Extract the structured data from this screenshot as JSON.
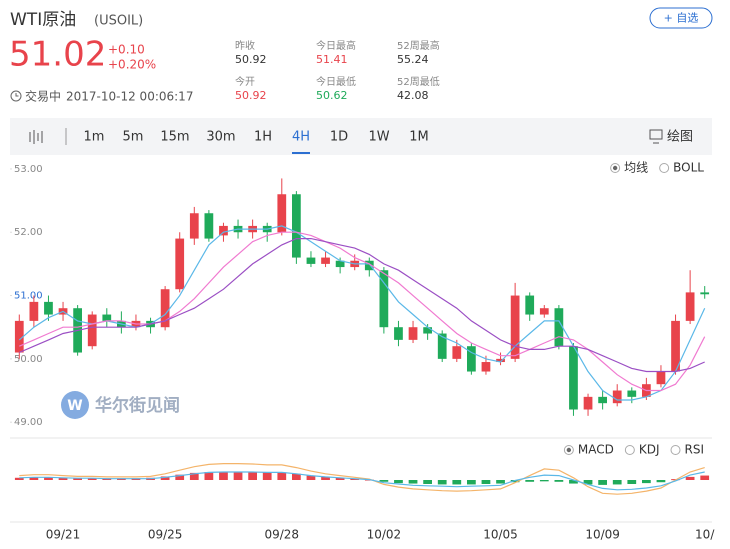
{
  "header": {
    "name": "WTI原油",
    "symbol": "(USOIL)",
    "price": "51.02",
    "change": "+0.10",
    "change_pct": "+0.20%",
    "status": "交易中",
    "time": "2017-10-12 00:06:17",
    "watch_button": "+ 自选",
    "stats": [
      {
        "label": "昨收",
        "value": "50.92",
        "color": "#333333"
      },
      {
        "label": "今日最高",
        "value": "51.41",
        "color": "#e8434b"
      },
      {
        "label": "52周最高",
        "value": "55.24",
        "color": "#333333"
      },
      {
        "label": "今开",
        "value": "50.92",
        "color": "#e8434b"
      },
      {
        "label": "今日最低",
        "value": "50.62",
        "color": "#1faa5a"
      },
      {
        "label": "52周最低",
        "value": "42.08",
        "color": "#333333"
      }
    ]
  },
  "toolbar": {
    "intervals": [
      {
        "label": "1m",
        "active": false
      },
      {
        "label": "5m",
        "active": false
      },
      {
        "label": "15m",
        "active": false
      },
      {
        "label": "30m",
        "active": false
      },
      {
        "label": "1H",
        "active": false
      },
      {
        "label": "4H",
        "active": true
      },
      {
        "label": "1D",
        "active": false
      },
      {
        "label": "1W",
        "active": false
      },
      {
        "label": "1M",
        "active": false
      }
    ],
    "draw": "绘图"
  },
  "chart_data": [
    {
      "type": "candlestick",
      "watermark": "华尔街见闻",
      "categories": [
        null,
        null,
        null,
        "09/21",
        null,
        null,
        null,
        null,
        null,
        null,
        "09/25",
        null,
        null,
        null,
        null,
        null,
        null,
        null,
        "09/28",
        null,
        null,
        null,
        null,
        null,
        null,
        "10/02",
        null,
        null,
        null,
        null,
        null,
        null,
        null,
        "10/05",
        null,
        null,
        null,
        null,
        null,
        null,
        "10/09",
        null,
        null,
        null,
        null,
        null,
        null,
        "10/"
      ],
      "open": [
        50.1,
        50.6,
        50.9,
        50.7,
        50.8,
        50.2,
        50.7,
        50.6,
        50.5,
        50.6,
        50.5,
        51.1,
        51.9,
        52.3,
        51.95,
        52.1,
        52.0,
        52.1,
        52.0,
        52.6,
        51.6,
        51.5,
        51.55,
        51.45,
        51.55,
        51.4,
        50.5,
        50.3,
        50.5,
        50.4,
        50.0,
        50.2,
        49.8,
        49.95,
        50.0,
        51.0,
        50.7,
        50.8,
        50.2,
        49.2,
        49.4,
        49.3,
        49.5,
        49.4,
        49.6,
        49.8,
        50.6,
        51.05
      ],
      "high": [
        50.7,
        51.0,
        51.0,
        50.9,
        50.85,
        50.75,
        50.8,
        50.75,
        50.7,
        50.65,
        51.15,
        52.0,
        52.4,
        52.35,
        52.15,
        52.2,
        52.2,
        52.15,
        52.85,
        52.65,
        51.7,
        51.7,
        51.6,
        51.65,
        51.6,
        51.45,
        50.6,
        50.6,
        50.55,
        50.45,
        50.3,
        50.25,
        50.05,
        50.1,
        51.2,
        51.05,
        50.85,
        50.85,
        50.25,
        49.45,
        49.5,
        49.6,
        49.55,
        49.7,
        49.9,
        50.7,
        51.4,
        51.15
      ],
      "low": [
        50.0,
        50.5,
        50.6,
        50.6,
        50.05,
        50.15,
        50.5,
        50.4,
        50.45,
        50.4,
        50.45,
        51.05,
        51.8,
        51.85,
        51.85,
        51.9,
        51.9,
        51.85,
        51.95,
        51.5,
        51.45,
        51.45,
        51.35,
        51.4,
        51.3,
        50.4,
        50.2,
        50.25,
        50.3,
        49.95,
        49.95,
        49.75,
        49.75,
        49.9,
        49.95,
        50.6,
        50.65,
        50.15,
        49.1,
        49.1,
        49.2,
        49.25,
        49.3,
        49.35,
        49.55,
        49.75,
        50.55,
        50.95
      ],
      "close": [
        50.6,
        50.9,
        50.7,
        50.8,
        50.1,
        50.7,
        50.6,
        50.5,
        50.6,
        50.5,
        51.1,
        51.9,
        52.3,
        51.9,
        52.1,
        52.0,
        52.1,
        52.0,
        52.6,
        51.6,
        51.5,
        51.6,
        51.45,
        51.55,
        51.4,
        50.5,
        50.3,
        50.5,
        50.4,
        50.0,
        50.2,
        49.8,
        49.95,
        50.0,
        51.0,
        50.7,
        50.8,
        50.2,
        49.2,
        49.4,
        49.3,
        49.5,
        49.4,
        49.6,
        49.8,
        50.6,
        51.05,
        51.02
      ],
      "up_color": "#e8434b",
      "down_color": "#1faa5a",
      "lines": [
        {
          "color": "#5bb8e8",
          "values": [
            50.3,
            50.5,
            50.65,
            50.75,
            50.6,
            50.55,
            50.6,
            50.55,
            50.5,
            50.55,
            50.7,
            51.0,
            51.4,
            51.8,
            52.0,
            52.05,
            52.05,
            52.05,
            52.1,
            52.0,
            51.85,
            51.7,
            51.55,
            51.5,
            51.5,
            51.2,
            50.9,
            50.7,
            50.5,
            50.35,
            50.25,
            50.1,
            50.0,
            49.95,
            50.2,
            50.4,
            50.6,
            50.6,
            50.2,
            49.8,
            49.5,
            49.35,
            49.35,
            49.4,
            49.5,
            49.8,
            50.3,
            50.8
          ]
        },
        {
          "color": "#f07ad0",
          "values": [
            50.2,
            50.3,
            50.4,
            50.5,
            50.5,
            50.55,
            50.6,
            50.6,
            50.55,
            50.55,
            50.6,
            50.75,
            50.95,
            51.2,
            51.45,
            51.65,
            51.85,
            51.95,
            52.0,
            52.0,
            51.95,
            51.85,
            51.75,
            51.6,
            51.5,
            51.35,
            51.2,
            51.0,
            50.8,
            50.6,
            50.4,
            50.25,
            50.15,
            50.05,
            50.05,
            50.15,
            50.25,
            50.35,
            50.3,
            50.15,
            49.95,
            49.75,
            49.6,
            49.5,
            49.5,
            49.6,
            49.9,
            50.35
          ]
        },
        {
          "color": "#9b4fc4",
          "values": [
            50.1,
            50.2,
            50.3,
            50.4,
            50.45,
            50.5,
            50.5,
            50.5,
            50.5,
            50.55,
            50.6,
            50.7,
            50.8,
            50.95,
            51.1,
            51.3,
            51.5,
            51.65,
            51.8,
            51.9,
            51.9,
            51.85,
            51.8,
            51.75,
            51.65,
            51.5,
            51.4,
            51.25,
            51.1,
            50.95,
            50.8,
            50.6,
            50.45,
            50.3,
            50.2,
            50.15,
            50.15,
            50.2,
            50.2,
            50.15,
            50.05,
            49.95,
            49.85,
            49.8,
            49.8,
            49.8,
            49.85,
            49.95
          ]
        }
      ],
      "ylim": [
        48.75,
        53.22
      ],
      "yticks": [
        {
          "value": 49,
          "label": "49.00",
          "color": "#888888"
        },
        {
          "value": 50,
          "label": "50.00",
          "color": "#888888"
        },
        {
          "value": 51,
          "label": "51.00",
          "color": "#2c6fd1"
        },
        {
          "value": 52,
          "label": "52.00",
          "color": "#888888"
        },
        {
          "value": 53,
          "label": "53.00",
          "color": "#888888"
        }
      ],
      "indicators": [
        {
          "label": "均线",
          "selected": true
        },
        {
          "label": "BOLL",
          "selected": false
        }
      ]
    },
    {
      "type": "macd",
      "values": [
        0.05,
        0.06,
        0.06,
        0.05,
        0.04,
        0.04,
        0.04,
        0.04,
        0.04,
        0.05,
        0.08,
        0.12,
        0.16,
        0.18,
        0.19,
        0.19,
        0.18,
        0.17,
        0.17,
        0.14,
        0.1,
        0.07,
        0.05,
        0.03,
        0.01,
        -0.04,
        -0.07,
        -0.08,
        -0.09,
        -0.1,
        -0.1,
        -0.1,
        -0.09,
        -0.08,
        -0.05,
        -0.04,
        -0.03,
        -0.04,
        -0.08,
        -0.1,
        -0.11,
        -0.1,
        -0.09,
        -0.07,
        -0.05,
        0.02,
        0.07,
        0.1
      ],
      "up_color": "#e8434b",
      "down_color": "#1faa5a",
      "lines": [
        {
          "color": "#f4b46a",
          "values": [
            0.1,
            0.12,
            0.12,
            0.1,
            0.08,
            0.08,
            0.07,
            0.07,
            0.07,
            0.08,
            0.14,
            0.22,
            0.3,
            0.35,
            0.37,
            0.37,
            0.36,
            0.34,
            0.34,
            0.28,
            0.2,
            0.14,
            0.1,
            0.06,
            0.02,
            -0.1,
            -0.16,
            -0.2,
            -0.22,
            -0.24,
            -0.25,
            -0.24,
            -0.22,
            -0.2,
            -0.06,
            0.1,
            0.25,
            0.22,
            0.05,
            -0.15,
            -0.3,
            -0.32,
            -0.3,
            -0.25,
            -0.18,
            0.0,
            0.18,
            0.28
          ]
        },
        {
          "color": "#5bb8e8",
          "values": [
            0.05,
            0.06,
            0.06,
            0.05,
            0.04,
            0.04,
            0.03,
            0.03,
            0.03,
            0.03,
            0.06,
            0.1,
            0.14,
            0.17,
            0.18,
            0.18,
            0.18,
            0.17,
            0.17,
            0.14,
            0.1,
            0.07,
            0.05,
            0.03,
            0.01,
            -0.06,
            -0.09,
            -0.12,
            -0.13,
            -0.14,
            -0.15,
            -0.14,
            -0.13,
            -0.12,
            -0.01,
            0.06,
            0.11,
            0.1,
            0.0,
            -0.1,
            -0.19,
            -0.22,
            -0.21,
            -0.18,
            -0.13,
            -0.02,
            0.11,
            0.18
          ]
        }
      ],
      "ylim": [
        -0.45,
        0.45
      ],
      "indicators": [
        {
          "label": "MACD",
          "selected": true
        },
        {
          "label": "KDJ",
          "selected": false
        },
        {
          "label": "RSI",
          "selected": false
        }
      ]
    }
  ]
}
